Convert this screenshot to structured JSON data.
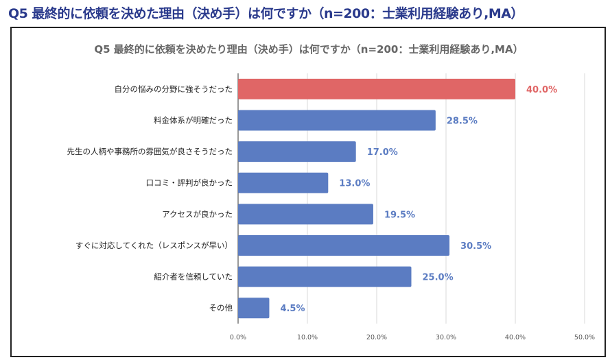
{
  "header": {
    "title": "Q5 最終的に依頼を決めた理由（決め手）は何ですか（n=200：士業利用経験あり,MA）"
  },
  "chart_data": {
    "type": "bar",
    "orientation": "horizontal",
    "title": "Q5 最終的に依頼を決めたり理由（決め手）は何ですか（n=200：士業利用経験あり,MA）",
    "categories": [
      "自分の悩みの分野に強そうだった",
      "料金体系が明確だった",
      "先生の人柄や事務所の雰囲気が良さそうだった",
      "口コミ・評判が良かった",
      "アクセスが良かった",
      "すぐに対応してくれた（レスポンスが早い）",
      "紹介者を信頼していた",
      "その他"
    ],
    "values": [
      40.0,
      28.5,
      17.0,
      13.0,
      19.5,
      30.5,
      25.0,
      4.5
    ],
    "data_labels": [
      "40.0%",
      "28.5%",
      "17.0%",
      "13.0%",
      "19.5%",
      "30.5%",
      "25.0%",
      "4.5%"
    ],
    "xlim": [
      0,
      50
    ],
    "xticks": [
      "0.0%",
      "10.0%",
      "20.0%",
      "30.0%",
      "40.0%",
      "50.0%"
    ],
    "grid": true,
    "colors": {
      "default": "#5b7cc2",
      "highlight": "#e06666",
      "label_default": "#5b7cc2",
      "label_highlight": "#e06666"
    },
    "highlight_index": 0
  }
}
